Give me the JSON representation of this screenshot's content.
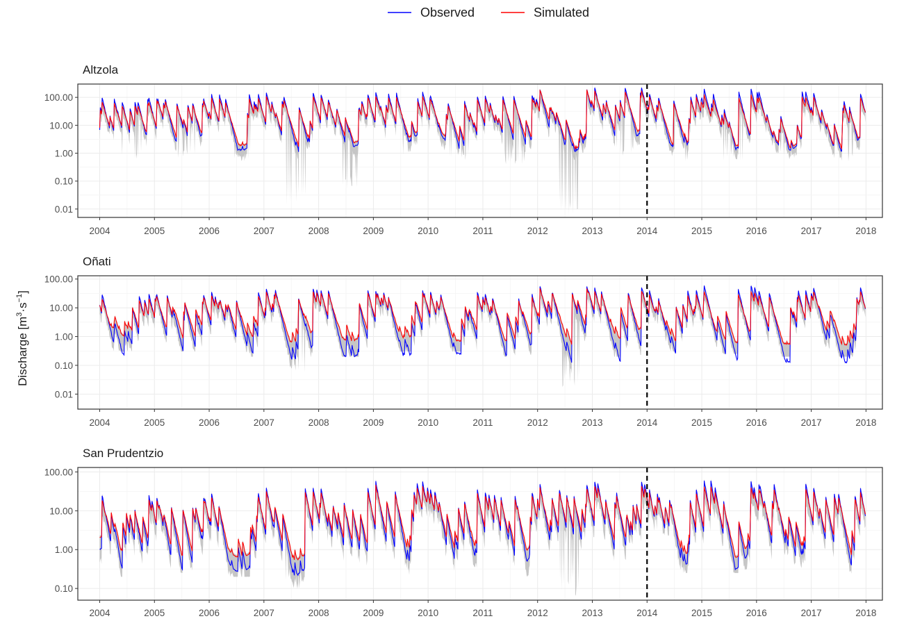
{
  "chart_data": {
    "type": "line",
    "legend": {
      "position": "top",
      "entries": [
        {
          "label": "Observed",
          "color": "#0000ff"
        },
        {
          "label": "Simulated",
          "color": "#ff0000"
        }
      ]
    },
    "ylabel_main": "Discharge [m",
    "ylabel_sup1": "3",
    "ylabel_mid": "·s",
    "ylabel_sup2": "−1",
    "ylabel_end": "]",
    "y_scale": "log10",
    "x_ticks": [
      "2004",
      "2005",
      "2006",
      "2007",
      "2008",
      "2009",
      "2010",
      "2011",
      "2012",
      "2013",
      "2014",
      "2015",
      "2016",
      "2017",
      "2018"
    ],
    "x_range": [
      2003.6,
      2018.3
    ],
    "split_line_x": 2014,
    "band_color": "#b3b3b3",
    "grid": true,
    "panels": [
      {
        "title": "Altzola",
        "y_range": [
          0.005,
          300
        ],
        "y_ticks": [
          {
            "value": 100,
            "label": "100.00"
          },
          {
            "value": 10,
            "label": "10.00"
          },
          {
            "value": 1,
            "label": "1.00"
          },
          {
            "value": 0.1,
            "label": "0.10"
          },
          {
            "value": 0.01,
            "label": "0.01"
          }
        ],
        "annual": {
          "obs_peak": [
            95,
            90,
            130,
            150,
            130,
            160,
            110,
            120,
            190,
            220,
            130,
            200,
            160,
            140
          ],
          "sim_peak": [
            70,
            80,
            100,
            120,
            110,
            120,
            90,
            100,
            200,
            180,
            110,
            130,
            110,
            110
          ],
          "obs_base": [
            2.0,
            1.9,
            1.3,
            1.1,
            1.6,
            2.5,
            1.3,
            1.1,
            0.9,
            1.9,
            1.5,
            1.4,
            1.3,
            1.2
          ],
          "sim_base": [
            3.0,
            2.6,
            1.9,
            1.6,
            2.2,
            3.6,
            2.0,
            1.6,
            1.1,
            2.9,
            1.8,
            1.7,
            1.6,
            1.4
          ],
          "band_min": [
            0.6,
            0.5,
            0.5,
            0.013,
            0.05,
            0.8,
            0.5,
            0.4,
            0.006,
            0.6,
            0.5,
            0.5,
            0.5,
            0.5
          ]
        }
      },
      {
        "title": "Oñati",
        "y_range": [
          0.003,
          130
        ],
        "y_ticks": [
          {
            "value": 100,
            "label": "100.00"
          },
          {
            "value": 10,
            "label": "10.00"
          },
          {
            "value": 1,
            "label": "1.00"
          },
          {
            "value": 0.1,
            "label": "0.10"
          },
          {
            "value": 0.01,
            "label": "0.01"
          }
        ],
        "annual": {
          "obs_peak": [
            30,
            28,
            35,
            45,
            40,
            40,
            35,
            30,
            55,
            50,
            40,
            60,
            40,
            50
          ],
          "sim_peak": [
            22,
            25,
            28,
            38,
            35,
            35,
            30,
            25,
            50,
            40,
            30,
            40,
            30,
            40
          ],
          "obs_base": [
            0.18,
            0.17,
            0.12,
            0.12,
            0.18,
            0.2,
            0.25,
            0.15,
            0.07,
            0.12,
            0.25,
            0.15,
            0.13,
            0.12
          ],
          "sim_base": [
            0.9,
            0.8,
            0.6,
            0.6,
            0.7,
            0.9,
            0.7,
            0.55,
            0.4,
            0.8,
            0.7,
            0.6,
            0.55,
            0.5
          ],
          "band_min": [
            0.3,
            0.3,
            0.2,
            0.05,
            0.2,
            0.3,
            0.3,
            0.2,
            0.015,
            0.2,
            0.3,
            0.25,
            0.2,
            0.2
          ]
        }
      },
      {
        "title": "San Prudentzio",
        "y_range": [
          0.05,
          130
        ],
        "y_ticks": [
          {
            "value": 100,
            "label": "100.00"
          },
          {
            "value": 10,
            "label": "10.00"
          },
          {
            "value": 1,
            "label": "1.00"
          },
          {
            "value": 0.1,
            "label": "0.10"
          }
        ],
        "annual": {
          "obs_peak": [
            25,
            22,
            28,
            40,
            38,
            58,
            35,
            30,
            48,
            55,
            35,
            60,
            50,
            38
          ],
          "sim_peak": [
            20,
            20,
            24,
            35,
            32,
            48,
            30,
            26,
            42,
            45,
            30,
            45,
            40,
            32
          ],
          "obs_base": [
            0.22,
            0.3,
            0.25,
            0.22,
            0.3,
            0.22,
            0.28,
            0.25,
            0.15,
            0.55,
            0.3,
            0.3,
            0.28,
            0.28
          ],
          "sim_base": [
            0.7,
            0.7,
            0.6,
            0.55,
            0.6,
            0.6,
            0.6,
            0.55,
            0.4,
            0.9,
            0.6,
            0.6,
            0.55,
            0.55
          ],
          "band_min": [
            0.2,
            0.25,
            0.2,
            0.1,
            0.2,
            0.2,
            0.2,
            0.2,
            0.06,
            0.4,
            0.25,
            0.25,
            0.2,
            0.2
          ]
        }
      }
    ]
  }
}
